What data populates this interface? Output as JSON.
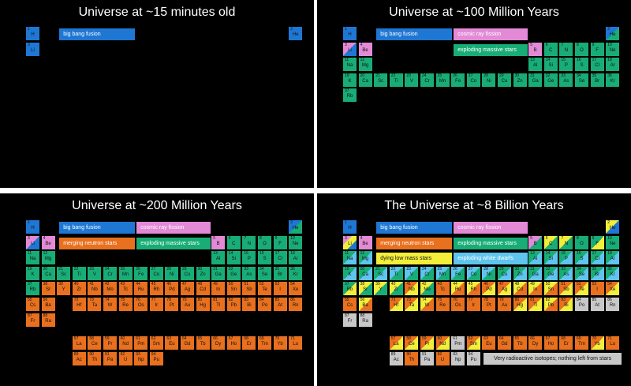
{
  "colors": {
    "bb": "#1f77d4",
    "cr": "#e38ad6",
    "ns": "#e8701e",
    "ms": "#18ad76",
    "lm": "#f2ee3a",
    "wd": "#5fc4ee",
    "ra": "#c8c8c8"
  },
  "elements": [
    [
      "H",
      1,
      1,
      1
    ],
    [
      "He",
      2,
      18,
      1
    ],
    [
      "Li",
      3,
      1,
      2
    ],
    [
      "Be",
      4,
      2,
      2
    ],
    [
      "B",
      5,
      13,
      2
    ],
    [
      "C",
      6,
      14,
      2
    ],
    [
      "N",
      7,
      15,
      2
    ],
    [
      "O",
      8,
      16,
      2
    ],
    [
      "F",
      9,
      17,
      2
    ],
    [
      "Ne",
      10,
      18,
      2
    ],
    [
      "Na",
      11,
      1,
      3
    ],
    [
      "Mg",
      12,
      2,
      3
    ],
    [
      "Al",
      13,
      13,
      3
    ],
    [
      "Si",
      14,
      14,
      3
    ],
    [
      "P",
      15,
      15,
      3
    ],
    [
      "S",
      16,
      16,
      3
    ],
    [
      "Cl",
      17,
      17,
      3
    ],
    [
      "Ar",
      18,
      18,
      3
    ],
    [
      "K",
      19,
      1,
      4
    ],
    [
      "Ca",
      20,
      2,
      4
    ],
    [
      "Sc",
      21,
      3,
      4
    ],
    [
      "Ti",
      22,
      4,
      4
    ],
    [
      "V",
      23,
      5,
      4
    ],
    [
      "Cr",
      24,
      6,
      4
    ],
    [
      "Mn",
      25,
      7,
      4
    ],
    [
      "Fe",
      26,
      8,
      4
    ],
    [
      "Co",
      27,
      9,
      4
    ],
    [
      "Ni",
      28,
      10,
      4
    ],
    [
      "Cu",
      29,
      11,
      4
    ],
    [
      "Zn",
      30,
      12,
      4
    ],
    [
      "Ga",
      31,
      13,
      4
    ],
    [
      "Ge",
      32,
      14,
      4
    ],
    [
      "As",
      33,
      15,
      4
    ],
    [
      "Se",
      34,
      16,
      4
    ],
    [
      "Br",
      35,
      17,
      4
    ],
    [
      "Kr",
      36,
      18,
      4
    ],
    [
      "Rb",
      37,
      1,
      5
    ],
    [
      "Sr",
      38,
      2,
      5
    ],
    [
      "Y",
      39,
      3,
      5
    ],
    [
      "Zr",
      40,
      4,
      5
    ],
    [
      "Nb",
      41,
      5,
      5
    ],
    [
      "Mo",
      42,
      6,
      5
    ],
    [
      "Tc",
      43,
      7,
      5
    ],
    [
      "Ru",
      44,
      8,
      5
    ],
    [
      "Rh",
      45,
      9,
      5
    ],
    [
      "Pd",
      46,
      10,
      5
    ],
    [
      "Ag",
      47,
      11,
      5
    ],
    [
      "Cd",
      48,
      12,
      5
    ],
    [
      "In",
      49,
      13,
      5
    ],
    [
      "Sn",
      50,
      14,
      5
    ],
    [
      "Sb",
      51,
      15,
      5
    ],
    [
      "Te",
      52,
      16,
      5
    ],
    [
      "I",
      53,
      17,
      5
    ],
    [
      "Xe",
      54,
      18,
      5
    ],
    [
      "Cs",
      55,
      1,
      6
    ],
    [
      "Ba",
      56,
      2,
      6
    ],
    [
      "Hf",
      72,
      4,
      6
    ],
    [
      "Ta",
      73,
      5,
      6
    ],
    [
      "W",
      74,
      6,
      6
    ],
    [
      "Re",
      75,
      7,
      6
    ],
    [
      "Os",
      76,
      8,
      6
    ],
    [
      "Ir",
      77,
      9,
      6
    ],
    [
      "Pt",
      78,
      10,
      6
    ],
    [
      "Au",
      79,
      11,
      6
    ],
    [
      "Hg",
      80,
      12,
      6
    ],
    [
      "Tl",
      81,
      13,
      6
    ],
    [
      "Pb",
      82,
      14,
      6
    ],
    [
      "Bi",
      83,
      15,
      6
    ],
    [
      "Po",
      84,
      16,
      6
    ],
    [
      "At",
      85,
      17,
      6
    ],
    [
      "Rn",
      86,
      18,
      6
    ],
    [
      "Fr",
      87,
      1,
      7
    ],
    [
      "Ra",
      88,
      2,
      7
    ],
    [
      "La",
      57,
      4,
      9
    ],
    [
      "Ce",
      58,
      5,
      9
    ],
    [
      "Pr",
      59,
      6,
      9
    ],
    [
      "Nd",
      60,
      7,
      9
    ],
    [
      "Pm",
      61,
      8,
      9
    ],
    [
      "Sm",
      62,
      9,
      9
    ],
    [
      "Eu",
      63,
      10,
      9
    ],
    [
      "Gd",
      64,
      11,
      9
    ],
    [
      "Tb",
      65,
      12,
      9
    ],
    [
      "Dy",
      66,
      13,
      9
    ],
    [
      "Ho",
      67,
      14,
      9
    ],
    [
      "Er",
      68,
      15,
      9
    ],
    [
      "Tm",
      69,
      16,
      9
    ],
    [
      "Yb",
      70,
      17,
      9
    ],
    [
      "Lu",
      71,
      18,
      9
    ],
    [
      "Ac",
      89,
      4,
      10
    ],
    [
      "Th",
      90,
      5,
      10
    ],
    [
      "Pa",
      91,
      6,
      10
    ],
    [
      "U",
      92,
      7,
      10
    ],
    [
      "Np",
      93,
      8,
      10
    ],
    [
      "Pu",
      94,
      9,
      10
    ]
  ],
  "panels": [
    {
      "title": "Universe at ~15 minutes old",
      "legend": [
        {
          "label": "big bang fusion",
          "color": "bb",
          "slot": 0
        }
      ],
      "fills": {
        "1": [
          "bb"
        ],
        "2": [
          "bb"
        ],
        "3": [
          "bb"
        ]
      }
    },
    {
      "title": "Universe at ~100 Million Years",
      "legend": [
        {
          "label": "big bang fusion",
          "color": "bb",
          "slot": 0
        },
        {
          "label": "cosmic ray fission",
          "color": "cr",
          "slot": 1
        },
        {
          "label": "exploding massive stars",
          "color": "ms",
          "slot": 3
        }
      ],
      "fills": {
        "1": [
          "bb"
        ],
        "2": [
          "bb",
          "ms"
        ],
        "3": [
          "cr",
          "bb"
        ],
        "4": [
          "cr"
        ],
        "5": [
          "cr"
        ],
        "6": [
          "ms"
        ],
        "7": [
          "ms"
        ],
        "8": [
          "ms"
        ],
        "9": [
          "ms"
        ],
        "10": [
          "ms"
        ],
        "11": [
          "ms"
        ],
        "12": [
          "ms"
        ],
        "13": [
          "ms"
        ],
        "14": [
          "ms"
        ],
        "15": [
          "ms"
        ],
        "16": [
          "ms"
        ],
        "17": [
          "ms"
        ],
        "18": [
          "ms"
        ],
        "19": [
          "ms"
        ],
        "20": [
          "ms"
        ],
        "21": [
          "ms"
        ],
        "22": [
          "ms"
        ],
        "23": [
          "ms"
        ],
        "24": [
          "ms"
        ],
        "25": [
          "ms"
        ],
        "26": [
          "ms"
        ],
        "27": [
          "ms"
        ],
        "28": [
          "ms"
        ],
        "29": [
          "ms"
        ],
        "30": [
          "ms"
        ],
        "31": [
          "ms"
        ],
        "32": [
          "ms"
        ],
        "33": [
          "ms"
        ],
        "34": [
          "ms"
        ],
        "35": [
          "ms"
        ],
        "36": [
          "ms"
        ],
        "37": [
          "ms"
        ]
      }
    },
    {
      "title": "Universe at ~200 Million Years",
      "legend": [
        {
          "label": "big bang fusion",
          "color": "bb",
          "slot": 0
        },
        {
          "label": "cosmic ray fission",
          "color": "cr",
          "slot": 1
        },
        {
          "label": "merging neutron stars",
          "color": "ns",
          "slot": 2
        },
        {
          "label": "exploding massive stars",
          "color": "ms",
          "slot": 3
        }
      ],
      "fills": {
        "1": [
          "bb"
        ],
        "2": [
          "bb",
          "ms"
        ],
        "3": [
          "cr",
          "bb"
        ],
        "4": [
          "cr"
        ],
        "5": [
          "cr"
        ],
        "6": [
          "ms"
        ],
        "7": [
          "ms"
        ],
        "8": [
          "ms"
        ],
        "9": [
          "ms"
        ],
        "10": [
          "ms"
        ],
        "11": [
          "ms"
        ],
        "12": [
          "ms"
        ],
        "13": [
          "ms"
        ],
        "14": [
          "ms"
        ],
        "15": [
          "ms"
        ],
        "16": [
          "ms"
        ],
        "17": [
          "ms"
        ],
        "18": [
          "ms"
        ],
        "19": [
          "ms"
        ],
        "20": [
          "ms"
        ],
        "21": [
          "ms"
        ],
        "22": [
          "ms"
        ],
        "23": [
          "ms"
        ],
        "24": [
          "ms"
        ],
        "25": [
          "ms"
        ],
        "26": [
          "ms"
        ],
        "27": [
          "ms"
        ],
        "28": [
          "ms"
        ],
        "29": [
          "ms"
        ],
        "30": [
          "ms"
        ],
        "31": [
          "ms"
        ],
        "32": [
          "ms"
        ],
        "33": [
          "ms"
        ],
        "34": [
          "ms"
        ],
        "35": [
          "ms"
        ],
        "36": [
          "ms"
        ],
        "37": [
          "ms"
        ],
        "38": [
          "ns"
        ],
        "39": [
          "ns"
        ],
        "40": [
          "ns"
        ],
        "41": [
          "ns"
        ],
        "42": [
          "ns"
        ],
        "43": [
          "ns"
        ],
        "44": [
          "ns"
        ],
        "45": [
          "ns"
        ],
        "46": [
          "ns"
        ],
        "47": [
          "ns"
        ],
        "48": [
          "ns"
        ],
        "49": [
          "ns"
        ],
        "50": [
          "ns"
        ],
        "51": [
          "ns"
        ],
        "52": [
          "ns"
        ],
        "53": [
          "ns"
        ],
        "54": [
          "ns"
        ],
        "55": [
          "ns"
        ],
        "56": [
          "ns"
        ],
        "72": [
          "ns"
        ],
        "73": [
          "ns"
        ],
        "74": [
          "ns"
        ],
        "75": [
          "ns"
        ],
        "76": [
          "ns"
        ],
        "77": [
          "ns"
        ],
        "78": [
          "ns"
        ],
        "79": [
          "ns"
        ],
        "80": [
          "ns"
        ],
        "81": [
          "ns"
        ],
        "82": [
          "ns"
        ],
        "83": [
          "ns"
        ],
        "84": [
          "ns"
        ],
        "85": [
          "ns"
        ],
        "86": [
          "ns"
        ],
        "87": [
          "ns"
        ],
        "88": [
          "ns"
        ],
        "57": [
          "ns"
        ],
        "58": [
          "ns"
        ],
        "59": [
          "ns"
        ],
        "60": [
          "ns"
        ],
        "61": [
          "ns"
        ],
        "62": [
          "ns"
        ],
        "63": [
          "ns"
        ],
        "64": [
          "ns"
        ],
        "65": [
          "ns"
        ],
        "66": [
          "ns"
        ],
        "67": [
          "ns"
        ],
        "68": [
          "ns"
        ],
        "69": [
          "ns"
        ],
        "70": [
          "ns"
        ],
        "71": [
          "ns"
        ],
        "89": [
          "ns"
        ],
        "90": [
          "ns"
        ],
        "91": [
          "ns"
        ],
        "92": [
          "ns"
        ],
        "93": [
          "ns"
        ],
        "94": [
          "ns"
        ]
      }
    },
    {
      "title": "The Universe at ~8 Billion Years",
      "note": "Very radioactive isotopes; nothing left from stars",
      "legend": [
        {
          "label": "big bang fusion",
          "color": "bb",
          "slot": 0
        },
        {
          "label": "cosmic ray fission",
          "color": "cr",
          "slot": 1
        },
        {
          "label": "merging neutron stars",
          "color": "ns",
          "slot": 2
        },
        {
          "label": "exploding massive stars",
          "color": "ms",
          "slot": 3
        },
        {
          "label": "dying low mass stars",
          "color": "lm",
          "slot": 4
        },
        {
          "label": "exploding white dwarfs",
          "color": "wd",
          "slot": 5
        }
      ],
      "fills": {
        "1": [
          "bb"
        ],
        "2": [
          "lm",
          "bb"
        ],
        "3": [
          "cr",
          "lm",
          "bb"
        ],
        "4": [
          "cr"
        ],
        "5": [
          "cr",
          "ms"
        ],
        "6": [
          "lm",
          "ms"
        ],
        "7": [
          "lm",
          "ms"
        ],
        "8": [
          "ms"
        ],
        "9": [
          "ms",
          "lm"
        ],
        "10": [
          "ms"
        ],
        "11": [
          "ms",
          "wd"
        ],
        "12": [
          "ms",
          "wd"
        ],
        "13": [
          "ms",
          "wd"
        ],
        "14": [
          "ms",
          "wd"
        ],
        "15": [
          "ms",
          "wd"
        ],
        "16": [
          "ms",
          "wd"
        ],
        "17": [
          "ms",
          "wd"
        ],
        "18": [
          "ms",
          "wd"
        ],
        "19": [
          "ms",
          "wd"
        ],
        "20": [
          "ms",
          "wd"
        ],
        "21": [
          "ms",
          "wd"
        ],
        "22": [
          "wd",
          "ms"
        ],
        "23": [
          "wd",
          "ms"
        ],
        "24": [
          "wd",
          "ms"
        ],
        "25": [
          "wd",
          "ms"
        ],
        "26": [
          "wd",
          "ms"
        ],
        "27": [
          "wd",
          "ms"
        ],
        "28": [
          "wd",
          "ms"
        ],
        "29": [
          "ms",
          "wd"
        ],
        "30": [
          "ms",
          "wd"
        ],
        "31": [
          "ms",
          "wd"
        ],
        "32": [
          "ms",
          "wd"
        ],
        "33": [
          "ms",
          "wd"
        ],
        "34": [
          "ms",
          "wd"
        ],
        "35": [
          "ms",
          "wd"
        ],
        "36": [
          "ms",
          "wd"
        ],
        "37": [
          "ms",
          "lm"
        ],
        "38": [
          "lm",
          "ms"
        ],
        "39": [
          "lm",
          "ms"
        ],
        "40": [
          "lm",
          "ms"
        ],
        "41": [
          "ns",
          "lm"
        ],
        "42": [
          "lm",
          "ms"
        ],
        "43": [
          "ns"
        ],
        "44": [
          "lm",
          "ns"
        ],
        "45": [
          "lm",
          "ns"
        ],
        "46": [
          "ns",
          "lm"
        ],
        "47": [
          "ns",
          "lm"
        ],
        "48": [
          "lm",
          "ns"
        ],
        "49": [
          "lm",
          "ns"
        ],
        "50": [
          "lm",
          "ns"
        ],
        "51": [
          "ns",
          "lm"
        ],
        "52": [
          "ns",
          "lm"
        ],
        "53": [
          "ns"
        ],
        "54": [
          "ns",
          "lm"
        ],
        "55": [
          "ns"
        ],
        "56": [
          "lm",
          "ns"
        ],
        "72": [
          "ns",
          "lm"
        ],
        "73": [
          "ns",
          "lm"
        ],
        "74": [
          "lm",
          "ns"
        ],
        "75": [
          "ns"
        ],
        "76": [
          "ns"
        ],
        "77": [
          "ns"
        ],
        "78": [
          "ns"
        ],
        "79": [
          "ns"
        ],
        "80": [
          "ns",
          "lm"
        ],
        "81": [
          "ns",
          "lm"
        ],
        "82": [
          "lm",
          "ns"
        ],
        "83": [
          "ns",
          "lm"
        ],
        "84": [
          "ra"
        ],
        "85": [
          "ra"
        ],
        "86": [
          "ra"
        ],
        "87": [
          "ra"
        ],
        "88": [
          "ra"
        ],
        "57": [
          "ns",
          "lm"
        ],
        "58": [
          "ns",
          "lm"
        ],
        "59": [
          "ns",
          "lm"
        ],
        "60": [
          "ns",
          "lm"
        ],
        "61": [
          "ra"
        ],
        "62": [
          "ns",
          "lm"
        ],
        "63": [
          "ns"
        ],
        "64": [
          "ns"
        ],
        "65": [
          "ns"
        ],
        "66": [
          "ns"
        ],
        "67": [
          "ns"
        ],
        "68": [
          "ns"
        ],
        "69": [
          "ns"
        ],
        "70": [
          "ns",
          "lm"
        ],
        "71": [
          "ns"
        ],
        "89": [
          "ra"
        ],
        "90": [
          "ns"
        ],
        "91": [
          "ra"
        ],
        "92": [
          "ns"
        ],
        "93": [
          "ra"
        ],
        "94": [
          "ra"
        ]
      }
    }
  ]
}
